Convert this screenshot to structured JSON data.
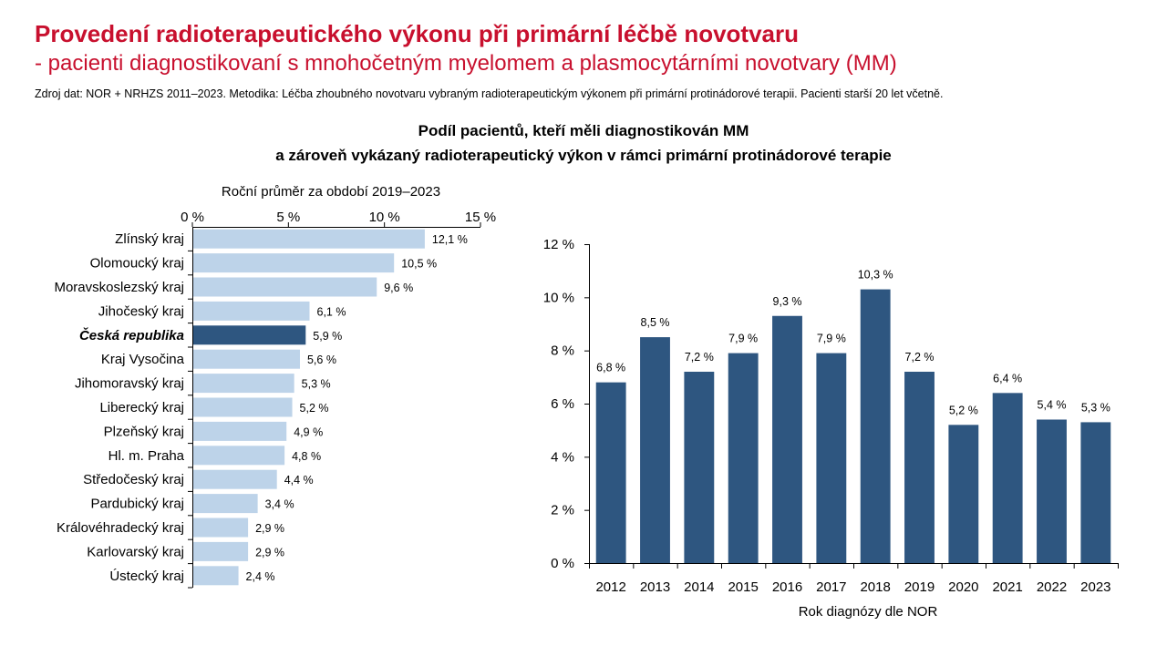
{
  "header": {
    "title": "Provedení radioterapeutického výkonu při primární léčbě novotvaru",
    "subtitle": "- pacienti diagnostikovaní s mnohočetným myelomem a plasmocytárními novotvary (MM)",
    "source": "Zdroj dat: NOR + NRHZS 2011–2023. Metodika: Léčba zhoubného novotvaru vybraným radioterapeutickým výkonem při primární protinádorové terapii. Pacienti starší 20 let včetně."
  },
  "chart_heading": {
    "line1": "Podíl pacientů, kteří měli diagnostikován MM",
    "line2": "a zároveň vykázaný radioterapeutický výkon v rámci primární protinádorové terapie"
  },
  "colors": {
    "title_red": "#c8102e",
    "bar_light": "#bdd3e9",
    "bar_dark": "#2e5680"
  },
  "chart_data": [
    {
      "type": "bar",
      "orientation": "horizontal",
      "title": "Roční průměr za období 2019–2023",
      "xlim": [
        0,
        15
      ],
      "ticks": [
        0,
        5,
        10,
        15
      ],
      "tick_labels": [
        "0 %",
        "5 %",
        "10 %",
        "15 %"
      ],
      "categories": [
        "Zlínský kraj",
        "Olomoucký kraj",
        "Moravskoslezský kraj",
        "Jihočeský kraj",
        "Česká republika",
        "Kraj Vysočina",
        "Jihomoravský kraj",
        "Liberecký kraj",
        "Plzeňský kraj",
        "Hl. m. Praha",
        "Středočeský kraj",
        "Pardubický kraj",
        "Královéhradecký kraj",
        "Karlovarský kraj",
        "Ústecký kraj"
      ],
      "values": [
        12.1,
        10.5,
        9.6,
        6.1,
        5.9,
        5.6,
        5.3,
        5.2,
        4.9,
        4.8,
        4.4,
        3.4,
        2.9,
        2.9,
        2.4
      ],
      "value_labels": [
        "12,1 %",
        "10,5 %",
        "9,6 %",
        "6,1 %",
        "5,9 %",
        "5,6 %",
        "5,3 %",
        "5,2 %",
        "4,9 %",
        "4,8 %",
        "4,4 %",
        "3,4 %",
        "2,9 %",
        "2,9 %",
        "2,4 %"
      ],
      "highlight": "Česká republika",
      "axis_position": "top"
    },
    {
      "type": "bar",
      "orientation": "vertical",
      "xlabel": "Rok diagnózy dle NOR",
      "ylim": [
        0,
        12
      ],
      "yticks": [
        0,
        2,
        4,
        6,
        8,
        10,
        12
      ],
      "ytick_labels": [
        "0 %",
        "2 %",
        "4 %",
        "6 %",
        "8 %",
        "10 %",
        "12 %"
      ],
      "categories": [
        "2012",
        "2013",
        "2014",
        "2015",
        "2016",
        "2017",
        "2018",
        "2019",
        "2020",
        "2021",
        "2022",
        "2023"
      ],
      "values": [
        6.8,
        8.5,
        7.2,
        7.9,
        9.3,
        7.9,
        10.3,
        7.2,
        5.2,
        6.4,
        5.4,
        5.3
      ],
      "value_labels": [
        "6,8 %",
        "8,5 %",
        "7,2 %",
        "7,9 %",
        "9,3 %",
        "7,9 %",
        "10,3 %",
        "7,2 %",
        "5,2 %",
        "6,4 %",
        "5,4 %",
        "5,3 %"
      ]
    }
  ]
}
